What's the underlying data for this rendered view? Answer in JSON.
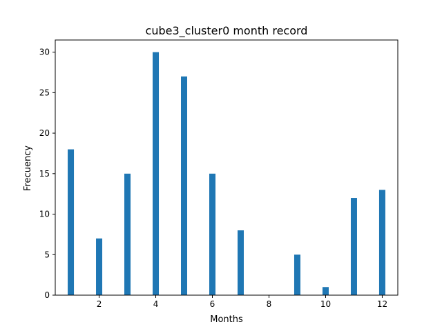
{
  "chart_data": {
    "type": "bar",
    "title": "cube3_cluster0 month record",
    "xlabel": "Months",
    "ylabel": "Frecuency",
    "x": [
      1,
      2,
      3,
      4,
      5,
      6,
      7,
      9,
      10,
      11,
      12
    ],
    "values": [
      18,
      7,
      15,
      30,
      27,
      15,
      8,
      5,
      1,
      12,
      13
    ],
    "xlim": [
      0.45,
      12.55
    ],
    "ylim": [
      0,
      31.5
    ],
    "xticks": [
      2,
      4,
      6,
      8,
      10,
      12
    ],
    "yticks": [
      0,
      5,
      10,
      15,
      20,
      25,
      30
    ],
    "bar_width": 0.22,
    "bar_color": "#1f77b4",
    "grid": false,
    "legend": "none"
  }
}
